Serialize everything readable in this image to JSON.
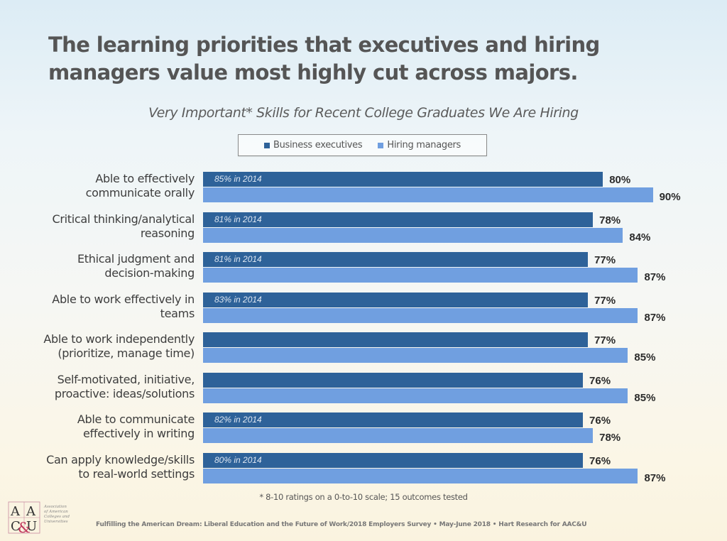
{
  "page": {
    "title_line1": "The learning priorities that executives and hiring",
    "title_line2": "managers value most highly cut across majors.",
    "footnote": "* 8-10 ratings on a 0-to-10 scale; 15 outcomes tested",
    "source": "Fulfilling the American Dream: Liberal Education and the Future of Work/2018 Employers Survey • May-June  2018 • Hart Research for AAC&U",
    "logo": {
      "letters": [
        "A",
        "A",
        "C",
        "U"
      ],
      "ampersand": "&",
      "text_lines": [
        "Association",
        "of American",
        "Colleges and",
        "Universities"
      ]
    }
  },
  "colors": {
    "business_executives": "#2e6299",
    "hiring_managers": "#709fe0",
    "logo_accent": "#c0335a"
  },
  "chart_data": {
    "type": "bar",
    "orientation": "horizontal",
    "title": "Very Important* Skills for Recent College Graduates We Are Hiring",
    "xlabel": "",
    "ylabel": "",
    "xlim": [
      0,
      100
    ],
    "grid": false,
    "legend_position": "top-center",
    "categories": [
      [
        "Able to effectively",
        "communicate orally"
      ],
      [
        "Critical thinking/analytical",
        "reasoning"
      ],
      [
        "Ethical judgment and",
        "decision-making"
      ],
      [
        "Able to work effectively in",
        "teams"
      ],
      [
        "Able to work independently",
        "(prioritize, manage time)"
      ],
      [
        "Self-motivated, initiative,",
        "proactive: ideas/solutions"
      ],
      [
        "Able to communicate",
        "effectively in writing"
      ],
      [
        "Can apply knowledge/skills",
        "to real-world settings"
      ]
    ],
    "series": [
      {
        "name": "Business executives",
        "values": [
          80,
          78,
          77,
          77,
          77,
          76,
          76,
          76
        ],
        "labels": [
          "80%",
          "78%",
          "77%",
          "77%",
          "77%",
          "76%",
          "76%",
          "76%"
        ],
        "annotations": [
          "85% in 2014",
          "81% in 2014",
          "81% in 2014",
          "83% in 2014",
          "",
          "",
          "82% in 2014",
          "80% in 2014"
        ]
      },
      {
        "name": "Hiring managers",
        "values": [
          90,
          84,
          87,
          87,
          85,
          85,
          78,
          87
        ],
        "labels": [
          "90%",
          "84%",
          "87%",
          "87%",
          "85%",
          "85%",
          "78%",
          "87%"
        ]
      }
    ]
  }
}
